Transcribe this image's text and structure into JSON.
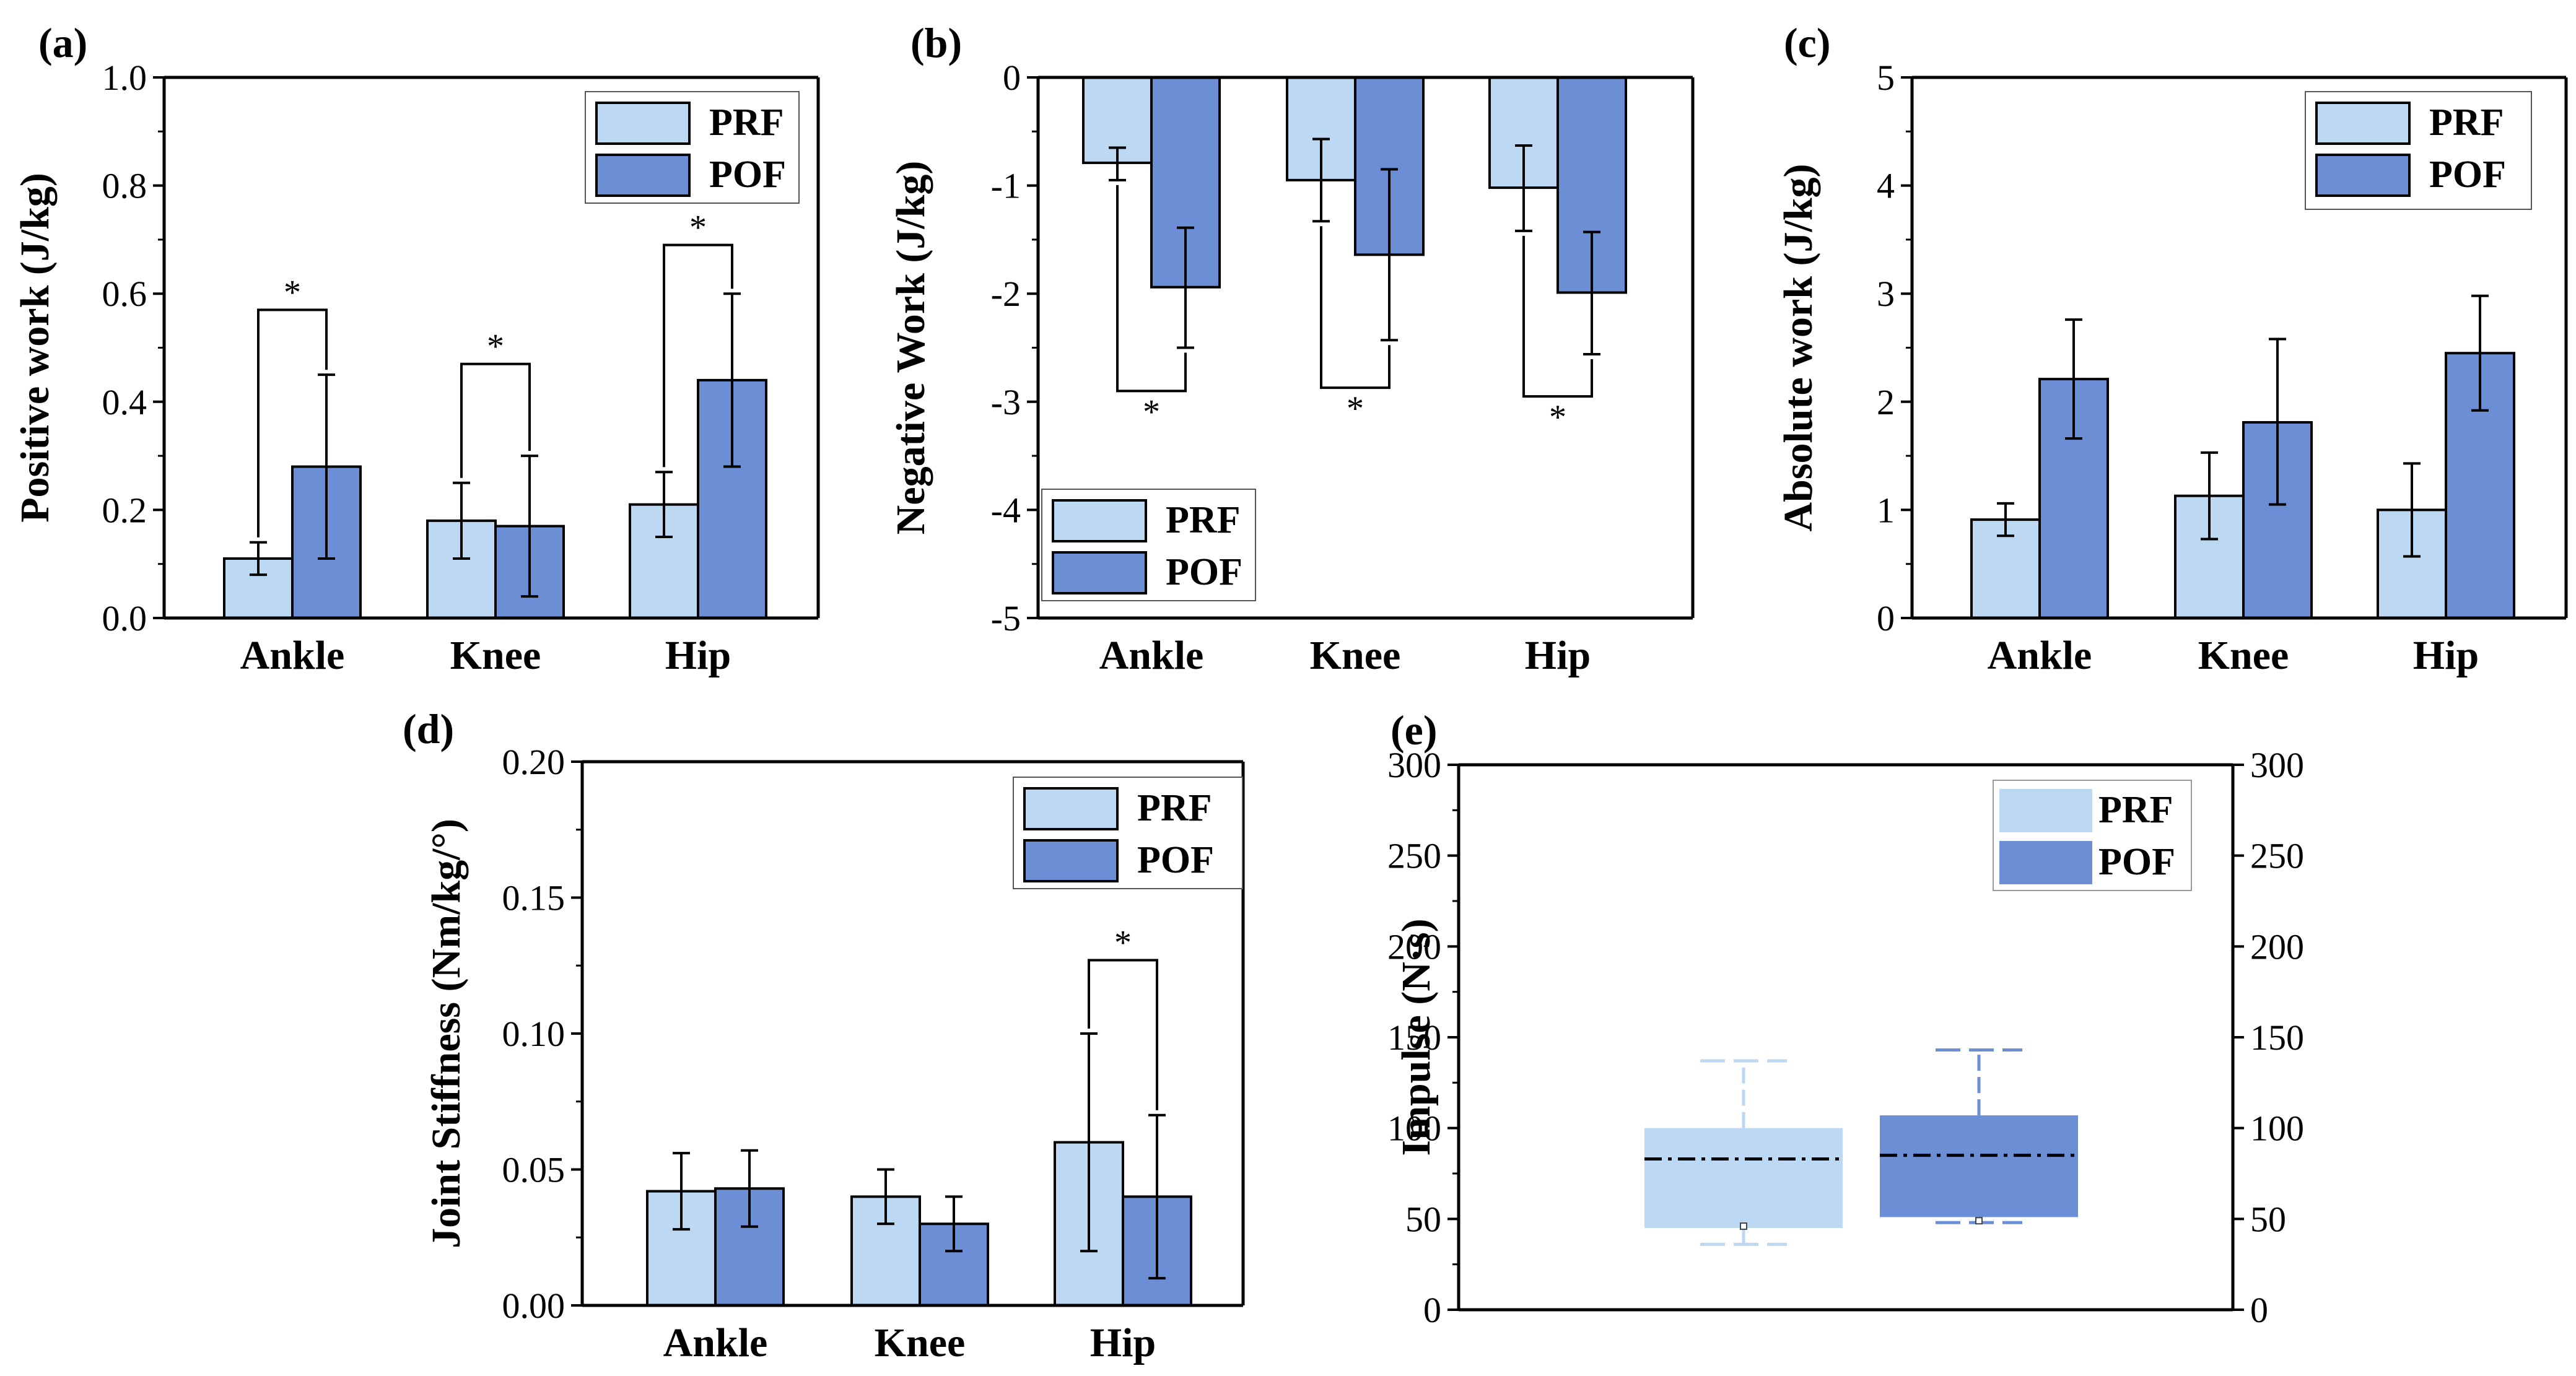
{
  "colors": {
    "prf": "#bcd8f3",
    "pof": "#6b8ed4",
    "axis": "#000000"
  },
  "chart_data": [
    {
      "panel": "(a)",
      "type": "bar",
      "ylabel": "Positive work (J/kg)",
      "categories": [
        "Ankle",
        "Knee",
        "Hip"
      ],
      "ylim": [
        0,
        1.0
      ],
      "yticks": [
        "0.0",
        "0.2",
        "0.4",
        "0.6",
        "0.8",
        "1.0"
      ],
      "ytick_values": [
        0,
        0.2,
        0.4,
        0.6,
        0.8,
        1.0
      ],
      "legend": [
        "PRF",
        "POF"
      ],
      "legend_position": "top-right",
      "series": [
        {
          "name": "PRF",
          "values": [
            0.11,
            0.18,
            0.21
          ],
          "err_low": [
            0.08,
            0.11,
            0.15
          ],
          "err_high": [
            0.14,
            0.25,
            0.27
          ]
        },
        {
          "name": "POF",
          "values": [
            0.28,
            0.17,
            0.44
          ],
          "err_low": [
            0.11,
            0.04,
            0.28
          ],
          "err_high": [
            0.45,
            0.3,
            0.6
          ]
        }
      ],
      "significance": [
        {
          "category": 0,
          "level": 0.57,
          "label": "*"
        },
        {
          "category": 1,
          "level": 0.47,
          "label": "*"
        },
        {
          "category": 2,
          "level": 0.69,
          "label": "*"
        }
      ]
    },
    {
      "panel": "(b)",
      "type": "bar",
      "ylabel": "Negative Work (J/kg)",
      "categories": [
        "Ankle",
        "Knee",
        "Hip"
      ],
      "ylim": [
        -5,
        0
      ],
      "yticks": [
        "-5",
        "-4",
        "-3",
        "-2",
        "-1",
        "0"
      ],
      "ytick_values": [
        -5,
        -4,
        -3,
        -2,
        -1,
        0
      ],
      "legend": [
        "PRF",
        "POF"
      ],
      "legend_position": "bottom-left",
      "series": [
        {
          "name": "PRF",
          "values": [
            -0.79,
            -0.95,
            -1.02
          ],
          "err_low": [
            -0.95,
            -1.33,
            -1.42
          ],
          "err_high": [
            -0.65,
            -0.57,
            -0.63
          ]
        },
        {
          "name": "POF",
          "values": [
            -1.94,
            -1.64,
            -1.99
          ],
          "err_low": [
            -2.5,
            -2.43,
            -2.56
          ],
          "err_high": [
            -1.39,
            -0.85,
            -1.43
          ]
        }
      ],
      "significance": [
        {
          "category": 0,
          "level": -2.9,
          "label": "*"
        },
        {
          "category": 1,
          "level": -2.87,
          "label": "*"
        },
        {
          "category": 2,
          "level": -2.95,
          "label": "*"
        }
      ]
    },
    {
      "panel": "(c)",
      "type": "bar",
      "ylabel": "Absolute work (J/kg)",
      "categories": [
        "Ankle",
        "Knee",
        "Hip"
      ],
      "ylim": [
        0,
        5
      ],
      "yticks": [
        "0",
        "1",
        "2",
        "3",
        "4",
        "5"
      ],
      "ytick_values": [
        0,
        1,
        2,
        3,
        4,
        5
      ],
      "legend": [
        "PRF",
        "POF"
      ],
      "legend_position": "top-right",
      "series": [
        {
          "name": "PRF",
          "values": [
            0.91,
            1.13,
            1.0
          ],
          "err_low": [
            0.76,
            0.73,
            0.57
          ],
          "err_high": [
            1.06,
            1.53,
            1.43
          ]
        },
        {
          "name": "POF",
          "values": [
            2.21,
            1.81,
            2.45
          ],
          "err_low": [
            1.66,
            1.05,
            1.92
          ],
          "err_high": [
            2.76,
            2.58,
            2.98
          ]
        }
      ],
      "significance": []
    },
    {
      "panel": "(d)",
      "type": "bar",
      "ylabel": "Joint Stiffness (Nm/kg/°)",
      "categories": [
        "Ankle",
        "Knee",
        "Hip"
      ],
      "ylim": [
        0,
        0.2
      ],
      "yticks": [
        "0.00",
        "0.05",
        "0.10",
        "0.15",
        "0.20"
      ],
      "ytick_values": [
        0,
        0.05,
        0.1,
        0.15,
        0.2
      ],
      "legend": [
        "PRF",
        "POF"
      ],
      "legend_position": "top-right",
      "series": [
        {
          "name": "PRF",
          "values": [
            0.042,
            0.04,
            0.06
          ],
          "err_low": [
            0.028,
            0.03,
            0.02
          ],
          "err_high": [
            0.056,
            0.05,
            0.1
          ]
        },
        {
          "name": "POF",
          "values": [
            0.043,
            0.03,
            0.04
          ],
          "err_low": [
            0.029,
            0.02,
            0.01
          ],
          "err_high": [
            0.057,
            0.04,
            0.07
          ]
        }
      ],
      "significance": [
        {
          "category": 2,
          "level": 0.127,
          "label": "*"
        }
      ]
    },
    {
      "panel": "(e)",
      "type": "box",
      "ylabel": "Impulse (N·s)",
      "ylim": [
        0,
        300
      ],
      "yticks": [
        "0",
        "50",
        "100",
        "150",
        "200",
        "250",
        "300"
      ],
      "ytick_values": [
        0,
        50,
        100,
        150,
        200,
        250,
        300
      ],
      "legend": [
        "PRF",
        "POF"
      ],
      "legend_position": "top-right",
      "series": [
        {
          "name": "PRF",
          "q1": 45,
          "q3": 100,
          "mean": 83,
          "whisker_low": 36,
          "whisker_high": 137,
          "point": 46
        },
        {
          "name": "POF",
          "q1": 51,
          "q3": 107,
          "mean": 85,
          "whisker_low": 48,
          "whisker_high": 143,
          "point": 49
        }
      ]
    }
  ]
}
